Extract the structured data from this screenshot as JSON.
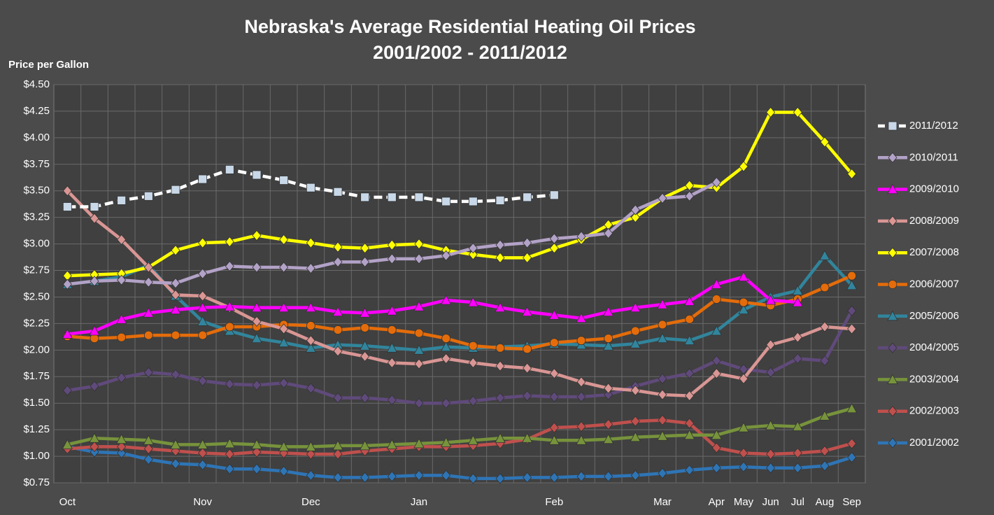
{
  "chart_data": {
    "type": "line",
    "title": "Nebraska's Average Residential Heating Oil Prices",
    "subtitle": "2001/2002 - 2011/2012",
    "y_label": "Price per Gallon",
    "categories": [
      "Oct",
      null,
      null,
      null,
      null,
      "Nov",
      null,
      null,
      null,
      "Dec",
      null,
      null,
      null,
      "Jan",
      null,
      null,
      null,
      null,
      "Feb",
      null,
      null,
      null,
      "Mar",
      null,
      "Apr",
      "May",
      "Jun",
      "Jul",
      "Aug",
      "Sep"
    ],
    "ylim": [
      0.75,
      4.5
    ],
    "yticks": [
      {
        "value": 0.75,
        "label": "$0.75"
      },
      {
        "value": 1.0,
        "label": "$1.00"
      },
      {
        "value": 1.25,
        "label": "$1.25"
      },
      {
        "value": 1.5,
        "label": "$1.50"
      },
      {
        "value": 1.75,
        "label": "$1.75"
      },
      {
        "value": 2.0,
        "label": "$2.00"
      },
      {
        "value": 2.25,
        "label": "$2.25"
      },
      {
        "value": 2.5,
        "label": "$2.50"
      },
      {
        "value": 2.75,
        "label": "$2.75"
      },
      {
        "value": 3.0,
        "label": "$3.00"
      },
      {
        "value": 3.25,
        "label": "$3.25"
      },
      {
        "value": 3.5,
        "label": "$3.50"
      },
      {
        "value": 3.75,
        "label": "$3.75"
      },
      {
        "value": 4.0,
        "label": "$4.00"
      },
      {
        "value": 4.25,
        "label": "$4.25"
      },
      {
        "value": 4.5,
        "label": "$4.50"
      }
    ],
    "grid": true,
    "legend": "right",
    "series": [
      {
        "name": "2011/2012",
        "color": "#ffffff",
        "marker": "square",
        "dashed": true,
        "values": [
          3.35,
          3.35,
          3.41,
          3.45,
          3.51,
          3.61,
          3.7,
          3.65,
          3.6,
          3.53,
          3.49,
          3.44,
          3.44,
          3.44,
          3.4,
          3.4,
          3.41,
          3.44,
          3.46,
          null,
          null,
          null,
          null,
          null,
          null,
          null,
          null,
          null,
          null,
          null
        ]
      },
      {
        "name": "2010/2011",
        "color": "#b3a2c7",
        "marker": "diamond",
        "values": [
          2.62,
          2.65,
          2.66,
          2.64,
          2.63,
          2.72,
          2.79,
          2.78,
          2.78,
          2.77,
          2.83,
          2.83,
          2.86,
          2.86,
          2.89,
          2.96,
          2.99,
          3.01,
          3.05,
          3.07,
          3.1,
          3.32,
          3.43,
          3.45,
          3.58,
          null,
          null,
          null,
          null,
          null
        ]
      },
      {
        "name": "2009/2010",
        "color": "#ff00ff",
        "marker": "triangle",
        "values": [
          2.15,
          2.18,
          2.29,
          2.35,
          2.38,
          2.4,
          2.41,
          2.4,
          2.4,
          2.4,
          2.36,
          2.35,
          2.37,
          2.41,
          2.47,
          2.45,
          2.4,
          2.36,
          2.33,
          2.3,
          2.36,
          2.4,
          2.43,
          2.46,
          2.62,
          2.69,
          2.47,
          2.45,
          null,
          null
        ]
      },
      {
        "name": "2008/2009",
        "color": "#d99694",
        "marker": "diamond",
        "values": [
          3.5,
          3.24,
          3.04,
          2.78,
          2.52,
          2.51,
          2.4,
          2.27,
          2.2,
          2.09,
          1.99,
          1.94,
          1.88,
          1.87,
          1.92,
          1.88,
          1.85,
          1.83,
          1.78,
          1.7,
          1.64,
          1.62,
          1.58,
          1.57,
          1.78,
          1.73,
          2.05,
          2.12,
          2.22,
          2.2
        ]
      },
      {
        "name": "2007/2008",
        "color": "#ffff00",
        "marker": "diamond",
        "values": [
          2.7,
          2.71,
          2.72,
          2.78,
          2.94,
          3.01,
          3.02,
          3.08,
          3.04,
          3.01,
          2.97,
          2.96,
          2.99,
          3.0,
          2.94,
          2.9,
          2.87,
          2.87,
          2.96,
          3.04,
          3.18,
          3.25,
          3.43,
          3.55,
          3.53,
          3.73,
          4.24,
          4.24,
          3.96,
          3.66
        ]
      },
      {
        "name": "2006/2007",
        "color": "#e46c0a",
        "marker": "circle",
        "values": [
          2.13,
          2.11,
          2.12,
          2.14,
          2.14,
          2.14,
          2.22,
          2.22,
          2.24,
          2.23,
          2.19,
          2.21,
          2.19,
          2.16,
          2.11,
          2.04,
          2.02,
          2.01,
          2.07,
          2.09,
          2.11,
          2.18,
          2.24,
          2.29,
          2.48,
          2.45,
          2.42,
          2.48,
          2.59,
          2.7
        ]
      },
      {
        "name": "2005/2006",
        "color": "#31859c",
        "marker": "triangle",
        "values": [
          2.62,
          2.65,
          2.69,
          2.8,
          2.51,
          2.27,
          2.18,
          2.11,
          2.07,
          2.02,
          2.05,
          2.04,
          2.02,
          2.0,
          2.03,
          2.02,
          2.03,
          2.04,
          2.06,
          2.05,
          2.04,
          2.06,
          2.11,
          2.09,
          2.18,
          2.38,
          2.5,
          2.56,
          2.89,
          2.61
        ]
      },
      {
        "name": "2004/2005",
        "color": "#604a7b",
        "marker": "diamond",
        "values": [
          1.62,
          1.66,
          1.74,
          1.79,
          1.77,
          1.71,
          1.68,
          1.67,
          1.69,
          1.64,
          1.55,
          1.55,
          1.53,
          1.5,
          1.5,
          1.52,
          1.55,
          1.57,
          1.56,
          1.56,
          1.58,
          1.66,
          1.73,
          1.78,
          1.9,
          1.82,
          1.79,
          1.92,
          1.9,
          2.37
        ]
      },
      {
        "name": "2003/2004",
        "color": "#77933c",
        "marker": "triangle",
        "values": [
          1.11,
          1.17,
          1.16,
          1.15,
          1.11,
          1.11,
          1.12,
          1.11,
          1.09,
          1.09,
          1.1,
          1.1,
          1.11,
          1.12,
          1.13,
          1.15,
          1.17,
          1.17,
          1.15,
          1.15,
          1.16,
          1.18,
          1.19,
          1.2,
          1.2,
          1.27,
          1.29,
          1.28,
          1.38,
          1.45
        ]
      },
      {
        "name": "2002/2003",
        "color": "#c0504d",
        "marker": "diamond",
        "values": [
          1.07,
          1.09,
          1.09,
          1.07,
          1.05,
          1.03,
          1.02,
          1.04,
          1.03,
          1.02,
          1.02,
          1.05,
          1.07,
          1.09,
          1.09,
          1.1,
          1.12,
          1.16,
          1.27,
          1.28,
          1.3,
          1.33,
          1.34,
          1.31,
          1.08,
          1.03,
          1.02,
          1.03,
          1.05,
          1.12
        ]
      },
      {
        "name": "2001/2002",
        "color": "#2e75b6",
        "marker": "diamond",
        "values": [
          1.09,
          1.04,
          1.03,
          0.97,
          0.93,
          0.92,
          0.88,
          0.88,
          0.86,
          0.82,
          0.8,
          0.8,
          0.81,
          0.82,
          0.82,
          0.79,
          0.79,
          0.8,
          0.8,
          0.81,
          0.81,
          0.82,
          0.84,
          0.87,
          0.89,
          0.9,
          0.89,
          0.89,
          0.91,
          0.99
        ]
      }
    ]
  }
}
